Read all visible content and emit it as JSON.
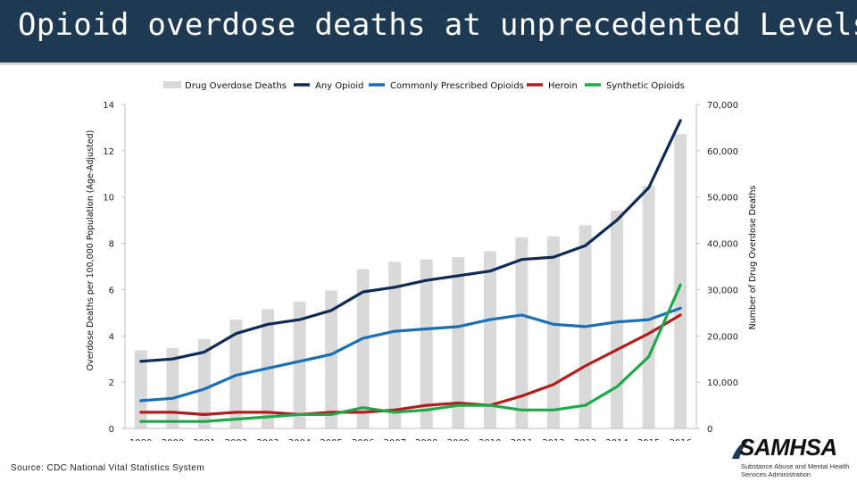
{
  "header": {
    "title": "Opioid overdose deaths at unprecedented Levels"
  },
  "source": "Source: CDC National Vital Statistics System",
  "logo": {
    "name": "SAMHSA",
    "subtitle": "Substance Abuse and Mental Health Services Administration"
  },
  "chart_data": {
    "type": "bar+line",
    "title": "",
    "categories": [
      "1999",
      "2000",
      "2001",
      "2002",
      "2003",
      "2004",
      "2005",
      "2006",
      "2007",
      "2008",
      "2009",
      "2010",
      "2011",
      "2012",
      "2013",
      "2014",
      "2015",
      "2016"
    ],
    "ylabel_left": "Overdose Deaths per 100,000 Population (Age-Adjusted)",
    "ylabel_right": "Number of Drug Overdose Deaths",
    "ylim_left": [
      0,
      14
    ],
    "yticks_left": [
      "0",
      "2",
      "4",
      "6",
      "8",
      "10",
      "12",
      "14"
    ],
    "ylim_right": [
      0,
      70000
    ],
    "yticks_right": [
      "0",
      "10,000",
      "20,000",
      "30,000",
      "40,000",
      "50,000",
      "60,000",
      "70,000"
    ],
    "grid": false,
    "legend_position": "top-center",
    "bars": {
      "name": "Drug Overdose Deaths",
      "color": "#d9d9d9",
      "axis": "right",
      "values": [
        16900,
        17400,
        19300,
        23500,
        25800,
        27400,
        29800,
        34400,
        36000,
        36500,
        37000,
        38300,
        41300,
        41500,
        43900,
        47100,
        52400,
        63600
      ]
    },
    "series": [
      {
        "name": "Any Opioid",
        "color": "#0e2a55",
        "axis": "left",
        "values": [
          2.9,
          3.0,
          3.3,
          4.1,
          4.5,
          4.7,
          5.1,
          5.9,
          6.1,
          6.4,
          6.6,
          6.8,
          7.3,
          7.4,
          7.9,
          9.0,
          10.4,
          13.3
        ]
      },
      {
        "name": "Commonly Prescribed Opioids",
        "color": "#1a6fb5",
        "axis": "left",
        "values": [
          1.2,
          1.3,
          1.7,
          2.3,
          2.6,
          2.9,
          3.2,
          3.9,
          4.2,
          4.3,
          4.4,
          4.7,
          4.9,
          4.5,
          4.4,
          4.6,
          4.7,
          5.2
        ]
      },
      {
        "name": "Heroin",
        "color": "#b21d1d",
        "axis": "left",
        "values": [
          0.7,
          0.7,
          0.6,
          0.7,
          0.7,
          0.6,
          0.7,
          0.7,
          0.8,
          1.0,
          1.1,
          1.0,
          1.4,
          1.9,
          2.7,
          3.4,
          4.1,
          4.9
        ]
      },
      {
        "name": "Synthetic Opioids",
        "color": "#1fa84a",
        "axis": "left",
        "values": [
          0.3,
          0.3,
          0.3,
          0.4,
          0.5,
          0.6,
          0.6,
          0.9,
          0.7,
          0.8,
          1.0,
          1.0,
          0.8,
          0.8,
          1.0,
          1.8,
          3.1,
          6.2
        ]
      }
    ]
  }
}
